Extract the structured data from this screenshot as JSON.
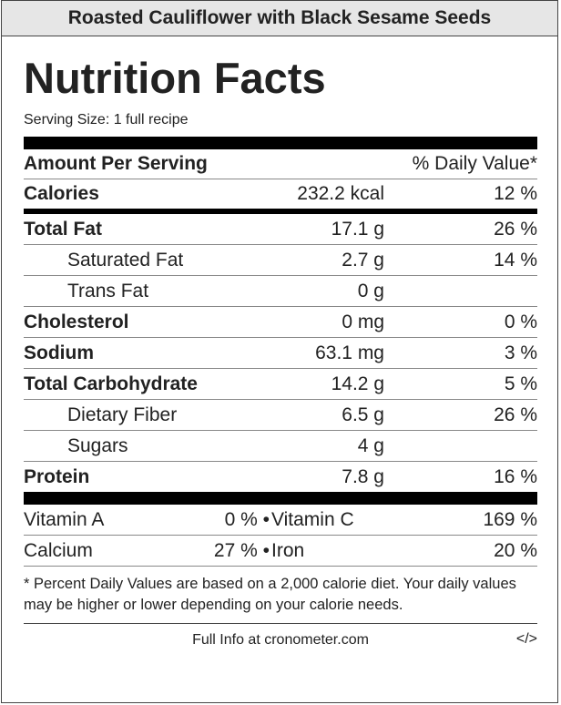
{
  "recipe_title": "Roasted Cauliflower with Black Sesame Seeds",
  "heading": "Nutrition Facts",
  "serving_size": "Serving Size: 1 full recipe",
  "header": {
    "amount_per_serving": "Amount Per Serving",
    "daily_value": "% Daily Value*"
  },
  "calories": {
    "name": "Calories",
    "amount": "232.2 kcal",
    "dv": "12 %"
  },
  "nutrients": [
    {
      "name": "Total Fat",
      "amount": "17.1 g",
      "dv": "26 %"
    },
    {
      "name": "Saturated Fat",
      "amount": "2.7 g",
      "dv": "14 %"
    },
    {
      "name": "Trans Fat",
      "amount": "0 g",
      "dv": ""
    },
    {
      "name": "Cholesterol",
      "amount": "0 mg",
      "dv": "0 %"
    },
    {
      "name": "Sodium",
      "amount": "63.1 mg",
      "dv": "3 %"
    },
    {
      "name": "Total Carbohydrate",
      "amount": "14.2 g",
      "dv": "5 %"
    },
    {
      "name": "Dietary Fiber",
      "amount": "6.5 g",
      "dv": "26 %"
    },
    {
      "name": "Sugars",
      "amount": "4 g",
      "dv": ""
    },
    {
      "name": "Protein",
      "amount": "7.8 g",
      "dv": "16 %"
    }
  ],
  "vitamins": [
    {
      "name_a": "Vitamin A",
      "value_a": "0 %",
      "name_b": "Vitamin C",
      "value_b": "169 %"
    },
    {
      "name_a": "Calcium",
      "value_a": "27 %",
      "name_b": "Iron",
      "value_b": "20 %"
    }
  ],
  "bullet": "•",
  "footnote": "* Percent Daily Values are based on a 2,000 calorie diet. Your daily values may be higher or lower depending on your calorie needs.",
  "footer": {
    "link_text": "Full Info at cronometer.com",
    "embed_label": "</>"
  },
  "colors": {
    "title_bg": "#e6e6e6",
    "text": "#222222",
    "rule": "#000000"
  }
}
